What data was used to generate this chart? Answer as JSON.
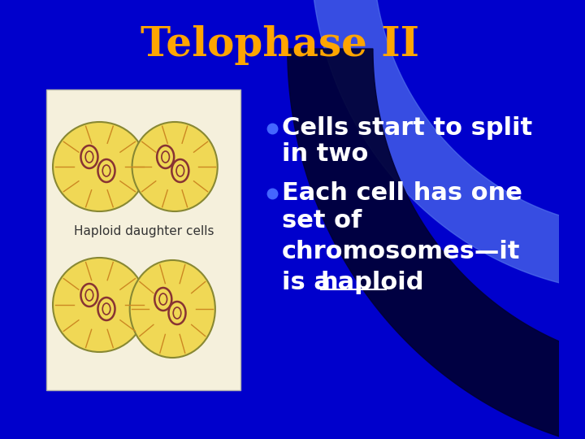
{
  "title": "Telophase II",
  "title_color": "#FFA500",
  "title_fontsize": 36,
  "bg_color": "#0000CC",
  "bullet_color": "#4466FF",
  "text_color": "#FFFFFF",
  "bullet1_line1": "Cells start to split",
  "bullet1_line2": "in two",
  "bullet2_line1": "Each cell has one",
  "bullet2_line2": "set of",
  "bullet2_line3": "chromosomes—it",
  "bullet2_line4": "is a ",
  "bullet2_haploid": "haploid",
  "text_fontsize": 22,
  "image_label": "Haploid daughter cells",
  "image_label_fontsize": 11,
  "curve_color": "#5577EE",
  "dark_curve_color": "#000033",
  "image_bg": "#F5F0DC"
}
